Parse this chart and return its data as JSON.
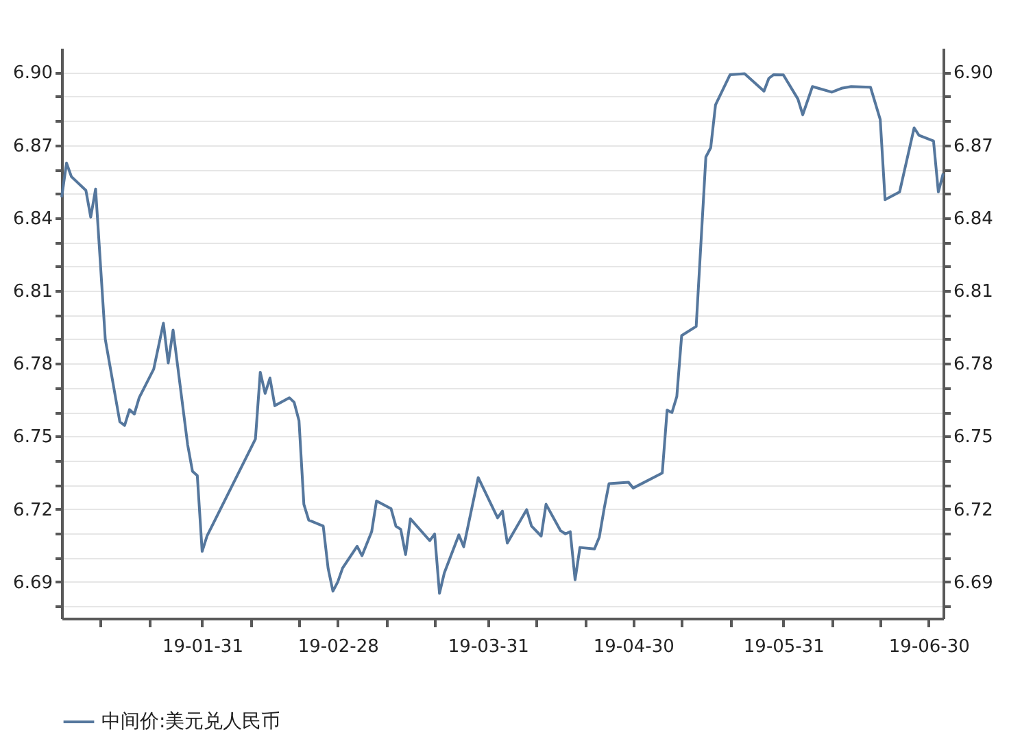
{
  "chart_data": {
    "type": "line",
    "legend": "bottom",
    "grid": "y",
    "marker": "none",
    "line_style": "solid",
    "xlim": [
      "--01-02",
      "--07-03"
    ],
    "xticks": [
      {
        "value": "--01-10",
        "label": null
      },
      {
        "value": "--01-20",
        "label": null
      },
      {
        "value": "--01-31",
        "label": "19-01-31"
      },
      {
        "value": "--02-10",
        "label": null
      },
      {
        "value": "--02-20",
        "label": null
      },
      {
        "value": "--02-28",
        "label": "19-02-28"
      },
      {
        "value": "--03-10",
        "label": null
      },
      {
        "value": "--03-20",
        "label": null
      },
      {
        "value": "--03-31",
        "label": "19-03-31"
      },
      {
        "value": "--04-10",
        "label": null
      },
      {
        "value": "--04-20",
        "label": null
      },
      {
        "value": "--04-30",
        "label": "19-04-30"
      },
      {
        "value": "--05-10",
        "label": null
      },
      {
        "value": "--05-20",
        "label": null
      },
      {
        "value": "--05-31",
        "label": "19-05-31"
      },
      {
        "value": "--06-10",
        "label": null
      },
      {
        "value": "--06-20",
        "label": null
      },
      {
        "value": "--06-30",
        "label": "19-06-30"
      }
    ],
    "ylim": [
      6.675,
      6.91
    ],
    "yticks": [
      {
        "value": 6.68,
        "label": null
      },
      6.69,
      {
        "value": 6.7,
        "label": null
      },
      {
        "value": 6.71,
        "label": null
      },
      6.72,
      {
        "value": 6.73,
        "label": null
      },
      {
        "value": 6.74,
        "label": null
      },
      6.75,
      {
        "value": 6.76,
        "label": null
      },
      {
        "value": 6.77,
        "label": null
      },
      6.78,
      {
        "value": 6.79,
        "label": null
      },
      {
        "value": 6.8,
        "label": null
      },
      6.81,
      {
        "value": 6.82,
        "label": null
      },
      {
        "value": 6.83,
        "label": null
      },
      6.84,
      {
        "value": 6.85,
        "label": null
      },
      {
        "value": 6.86,
        "label": null
      },
      6.87,
      {
        "value": 6.88,
        "label": null
      },
      {
        "value": 6.89,
        "label": null
      },
      {
        "value": 6.9,
        "label": "6.90"
      }
    ],
    "y2lim": [
      6.675,
      6.91
    ],
    "y2ticks": [
      {
        "value": 6.68,
        "label": null
      },
      6.69,
      {
        "value": 6.7,
        "label": null
      },
      {
        "value": 6.71,
        "label": null
      },
      6.72,
      {
        "value": 6.73,
        "label": null
      },
      {
        "value": 6.74,
        "label": null
      },
      6.75,
      {
        "value": 6.76,
        "label": null
      },
      {
        "value": 6.77,
        "label": null
      },
      6.78,
      {
        "value": 6.79,
        "label": null
      },
      {
        "value": 6.8,
        "label": null
      },
      6.81,
      {
        "value": 6.82,
        "label": null
      },
      {
        "value": 6.83,
        "label": null
      },
      6.84,
      {
        "value": 6.85,
        "label": null
      },
      {
        "value": 6.86,
        "label": null
      },
      6.87,
      {
        "value": 6.88,
        "label": null
      },
      {
        "value": 6.89,
        "label": null
      },
      {
        "value": 6.9,
        "label": "6.90"
      }
    ],
    "x": [
      "--01-02",
      "--01-03",
      "--01-04",
      "--01-07",
      "--01-08",
      "--01-09",
      "--01-11",
      "--01-14",
      "--01-15",
      "--01-16",
      "--01-17",
      "--01-18",
      "--01-21",
      "--01-23",
      "--01-24",
      "--01-25",
      "--01-28",
      "--01-29",
      "--01-30",
      "--01-31",
      "--02-01",
      "--02-11",
      "--02-12",
      "--02-13",
      "--02-14",
      "--02-15",
      "--02-18",
      "--02-19",
      "--02-20",
      "--02-21",
      "--02-22",
      "--02-25",
      "--02-26",
      "--02-27",
      "--02-28",
      "--03-01",
      "--03-04",
      "--03-05",
      "--03-07",
      "--03-08",
      "--03-11",
      "--03-12",
      "--03-13",
      "--03-14",
      "--03-15",
      "--03-19",
      "--03-20",
      "--03-21",
      "--03-22",
      "--03-25",
      "--03-26",
      "--03-29",
      "--04-02",
      "--04-03",
      "--04-04",
      "--04-08",
      "--04-09",
      "--04-11",
      "--04-12",
      "--04-15",
      "--04-16",
      "--04-17",
      "--04-18",
      "--04-19",
      "--04-22",
      "--04-23",
      "--04-24",
      "--04-25",
      "--04-29",
      "--04-30",
      "--05-06",
      "--05-07",
      "--05-08",
      "--05-09",
      "--05-10",
      "--05-13",
      "--05-15",
      "--05-16",
      "--05-17",
      "--05-20",
      "--05-23",
      "--05-27",
      "--05-28",
      "--05-29",
      "--05-31",
      "--06-03",
      "--06-04",
      "--06-06",
      "--06-10",
      "--06-12",
      "--06-14",
      "--06-18",
      "--06-20",
      "--06-21",
      "--06-24",
      "--06-27",
      "--06-28",
      "--07-01",
      "--07-02",
      "--07-03"
    ],
    "series": [
      {
        "name": "中间价:美元兑人民币",
        "color": "#55779d",
        "values": [
          6.8485,
          6.8626,
          6.857,
          6.8513,
          6.8403,
          6.8519,
          6.79,
          6.756,
          6.7545,
          6.761,
          6.7592,
          6.7659,
          6.7777,
          6.7966,
          6.7802,
          6.7938,
          6.7466,
          6.7356,
          6.7338,
          6.7026,
          6.7089,
          6.7489,
          6.7764,
          6.7677,
          6.774,
          6.7626,
          6.7659,
          6.764,
          6.7564,
          6.722,
          6.7155,
          6.713,
          6.6957,
          6.6862,
          6.69,
          6.6957,
          6.7047,
          6.7008,
          6.7107,
          6.7234,
          6.7202,
          6.713,
          6.7117,
          6.7013,
          6.716,
          6.707,
          6.7098,
          6.6853,
          6.6937,
          6.7094,
          6.7045,
          6.733,
          6.7164,
          6.7192,
          6.706,
          6.7198,
          6.713,
          6.7089,
          6.722,
          6.7111,
          6.7098,
          6.7107,
          6.6909,
          6.7042,
          6.7036,
          6.7085,
          6.7202,
          6.7305,
          6.7311,
          6.7287,
          6.7349,
          6.7608,
          6.7598,
          6.7664,
          6.7915,
          6.7953,
          6.8651,
          6.8689,
          6.8866,
          6.899,
          6.8994,
          6.8922,
          6.8975,
          6.899,
          6.8989,
          6.889,
          6.8825,
          6.8941,
          6.8918,
          6.8934,
          6.8941,
          6.8938,
          6.8805,
          6.8475,
          6.8507,
          6.8771,
          6.874,
          6.8717,
          6.8507,
          6.8583
        ]
      }
    ]
  }
}
